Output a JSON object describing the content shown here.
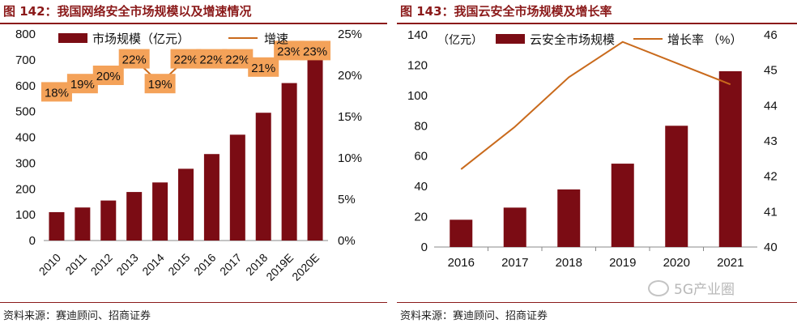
{
  "left_panel": {
    "title": "图 142：我国网络安全市场规模以及增速情况",
    "source": "资料来源：赛迪顾问、招商证券"
  },
  "right_panel": {
    "title": "图 143：我国云安全市场规模及增长率",
    "source": "资料来源：赛迪顾问、招商证券"
  },
  "watermark": {
    "text": "5G产业圈",
    "icon": "wechat-icon"
  },
  "colors": {
    "bar": "#7b0c14",
    "line": "#c96a1c",
    "label_bg": "#f4a259",
    "title": "#8b1a1a"
  },
  "chart_data": [
    {
      "type": "bar+line",
      "categories": [
        "2010",
        "2011",
        "2012",
        "2013",
        "2014",
        "2015",
        "2016",
        "2017",
        "2018",
        "2019E",
        "2020E"
      ],
      "series": [
        {
          "name": "市场规模（亿元）",
          "type": "bar",
          "axis": "left",
          "values": [
            110,
            128,
            155,
            188,
            225,
            278,
            335,
            410,
            495,
            610,
            700
          ]
        },
        {
          "name": "增速",
          "type": "line",
          "axis": "right",
          "values": [
            18,
            19,
            20,
            22,
            19,
            22,
            22,
            22,
            21,
            23,
            23
          ],
          "labels": [
            "18%",
            "19%",
            "20%",
            "22%",
            "19%",
            "22%",
            "22%",
            "22%",
            "21%",
            "23%",
            "23%"
          ]
        }
      ],
      "y_left": {
        "min": 0,
        "max": 800,
        "ticks": [
          "0",
          "100",
          "200",
          "300",
          "400",
          "500",
          "600",
          "700",
          "800"
        ]
      },
      "y_right": {
        "min": 0,
        "max": 25,
        "ticks": [
          "0%",
          "5%",
          "10%",
          "15%",
          "20%",
          "25%"
        ]
      },
      "legend": [
        {
          "label": "市场规模（亿元）",
          "kind": "bar"
        },
        {
          "label": "增速",
          "kind": "line"
        }
      ],
      "legend_position": "top"
    },
    {
      "type": "bar+line",
      "categories": [
        "2016",
        "2017",
        "2018",
        "2019",
        "2020",
        "2021"
      ],
      "series": [
        {
          "name": "云安全市场规模",
          "type": "bar",
          "axis": "left",
          "values": [
            18,
            26,
            38,
            55,
            80,
            116
          ]
        },
        {
          "name": "增长率 （%）",
          "type": "line",
          "axis": "right",
          "values": [
            42.2,
            43.4,
            44.8,
            45.8,
            45.2,
            44.6
          ]
        }
      ],
      "y_left": {
        "min": 0,
        "max": 140,
        "ticks": [
          "0",
          "20",
          "40",
          "60",
          "80",
          "100",
          "120",
          "140"
        ],
        "unit": "（亿元）"
      },
      "y_right": {
        "min": 40,
        "max": 46,
        "ticks": [
          "40",
          "41",
          "42",
          "43",
          "44",
          "45",
          "46"
        ]
      },
      "legend": [
        {
          "label": "云安全市场规模",
          "kind": "bar"
        },
        {
          "label": "增长率 （%）",
          "kind": "line"
        }
      ],
      "legend_position": "top"
    }
  ]
}
